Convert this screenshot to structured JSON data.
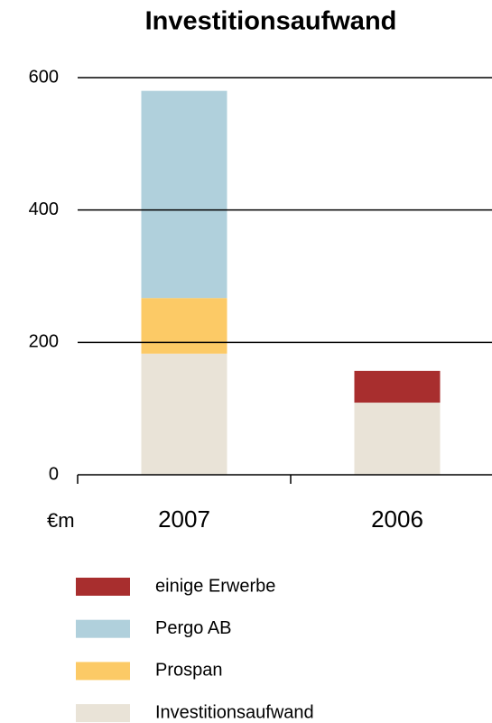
{
  "chart_data": {
    "type": "stacked_bar",
    "title": "Investitionsaufwand",
    "unit_label": "€m",
    "categories": [
      "2007",
      "2006"
    ],
    "series": [
      {
        "name": "einige Erwerbe",
        "color": "#a82e2e",
        "values": [
          null,
          48
        ]
      },
      {
        "name": "Pergo AB",
        "color": "#b0d0dc",
        "values": [
          313,
          null
        ]
      },
      {
        "name": "Prospan",
        "color": "#fcca66",
        "values": [
          84,
          null
        ]
      },
      {
        "name": "Investitionsaufwand",
        "color": "#e9e3d7",
        "values": [
          183,
          109
        ]
      }
    ],
    "ylim": [
      0,
      600
    ],
    "yticks": [
      0,
      200,
      400,
      600
    ],
    "grid": true
  }
}
